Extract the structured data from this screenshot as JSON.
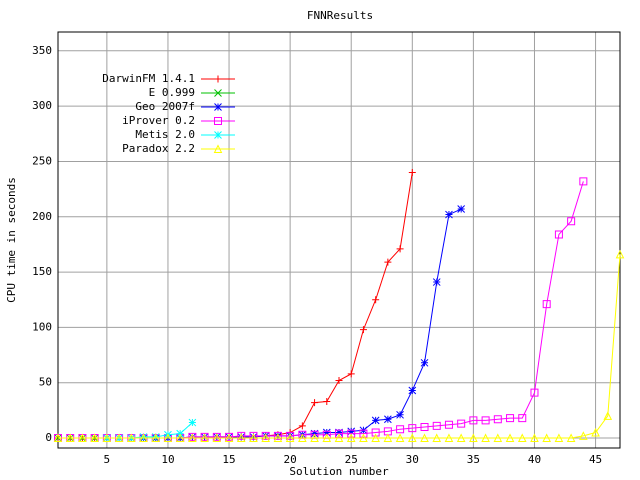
{
  "chart_data": {
    "type": "line",
    "title": "FNNResults",
    "x_label": "Solution number",
    "y_label": "CPU time in seconds",
    "xlim": [
      1,
      47
    ],
    "ylim": [
      -9,
      367
    ],
    "xticks": [
      5,
      10,
      15,
      20,
      25,
      30,
      35,
      40,
      45
    ],
    "yticks": [
      0,
      50,
      100,
      150,
      200,
      250,
      300,
      350
    ],
    "grid": true,
    "legend": "top-left",
    "series": [
      {
        "name": "DarwinFM 1.4.1",
        "color": "#ff0000",
        "marker": "plus",
        "x": [
          1,
          2,
          3,
          4,
          5,
          6,
          7,
          8,
          9,
          10,
          11,
          12,
          13,
          14,
          15,
          16,
          17,
          18,
          19,
          20,
          21,
          22,
          23,
          24,
          25,
          26,
          27,
          28,
          29,
          30
        ],
        "values": [
          0,
          0,
          0,
          0,
          0,
          0,
          0,
          0,
          0,
          0,
          0,
          0,
          0,
          1,
          1,
          1,
          1,
          2,
          3,
          5,
          11,
          32,
          33,
          52,
          58,
          98,
          125,
          159,
          171,
          240
        ]
      },
      {
        "name": "E 0.999",
        "color": "#00c000",
        "marker": "cross",
        "x": [
          1,
          2,
          3,
          4,
          5,
          6,
          7,
          8,
          9
        ],
        "values": [
          0,
          0,
          0,
          0,
          0,
          0,
          0,
          0,
          0
        ]
      },
      {
        "name": "Geo 2007f",
        "color": "#0000ff",
        "marker": "star",
        "x": [
          5,
          6,
          7,
          8,
          9,
          10,
          11,
          12,
          13,
          14,
          15,
          16,
          17,
          18,
          19,
          20,
          21,
          22,
          23,
          24,
          25,
          26,
          27,
          28,
          29,
          30,
          31,
          32,
          33,
          34
        ],
        "values": [
          0,
          0,
          0,
          0,
          0,
          0,
          0,
          1,
          1,
          1,
          1,
          1,
          1,
          2,
          2,
          2,
          3,
          4,
          5,
          5,
          6,
          7,
          16,
          17,
          21,
          43,
          68,
          141,
          202,
          207
        ]
      },
      {
        "name": "iProver 0.2",
        "color": "#ff00ff",
        "marker": "box",
        "x": [
          1,
          2,
          3,
          4,
          5,
          6,
          7,
          8,
          9,
          10,
          11,
          12,
          13,
          14,
          15,
          16,
          17,
          18,
          19,
          20,
          21,
          22,
          23,
          24,
          25,
          26,
          27,
          28,
          29,
          30,
          31,
          32,
          33,
          34,
          35,
          36,
          37,
          38,
          39,
          40,
          41,
          42,
          43,
          44
        ],
        "values": [
          0,
          0,
          0,
          0,
          0,
          0,
          0,
          0,
          0,
          0,
          0,
          1,
          1,
          1,
          1,
          2,
          2,
          2,
          2,
          2,
          3,
          3,
          3,
          4,
          4,
          4,
          5,
          6,
          8,
          9,
          10,
          11,
          12,
          13,
          16,
          16,
          17,
          18,
          18,
          41,
          121,
          184,
          196,
          232
        ]
      },
      {
        "name": "Metis 2.0",
        "color": "#00ffff",
        "marker": "star",
        "x": [
          5,
          6,
          7,
          8,
          9,
          10,
          11,
          12
        ],
        "values": [
          0,
          0,
          0,
          1,
          1,
          3,
          4,
          14
        ]
      },
      {
        "name": "Paradox 2.2",
        "color": "#ffff00",
        "marker": "triangle",
        "x": [
          1,
          2,
          3,
          4,
          5,
          6,
          7,
          8,
          9,
          10,
          11,
          12,
          13,
          14,
          15,
          16,
          17,
          18,
          19,
          20,
          21,
          22,
          23,
          24,
          25,
          26,
          27,
          28,
          29,
          30,
          31,
          32,
          33,
          34,
          35,
          36,
          37,
          38,
          39,
          40,
          41,
          42,
          43,
          44,
          45,
          46,
          47
        ],
        "values": [
          0,
          0,
          0,
          0,
          0,
          0,
          0,
          0,
          0,
          0,
          0,
          0,
          0,
          0,
          0,
          0,
          0,
          0,
          0,
          0,
          0,
          0,
          0,
          0,
          0,
          0,
          0,
          0,
          0,
          0,
          0,
          0,
          0,
          0,
          0,
          0,
          0,
          0,
          0,
          0,
          0,
          0,
          0,
          2,
          5,
          20,
          166
        ]
      }
    ]
  }
}
